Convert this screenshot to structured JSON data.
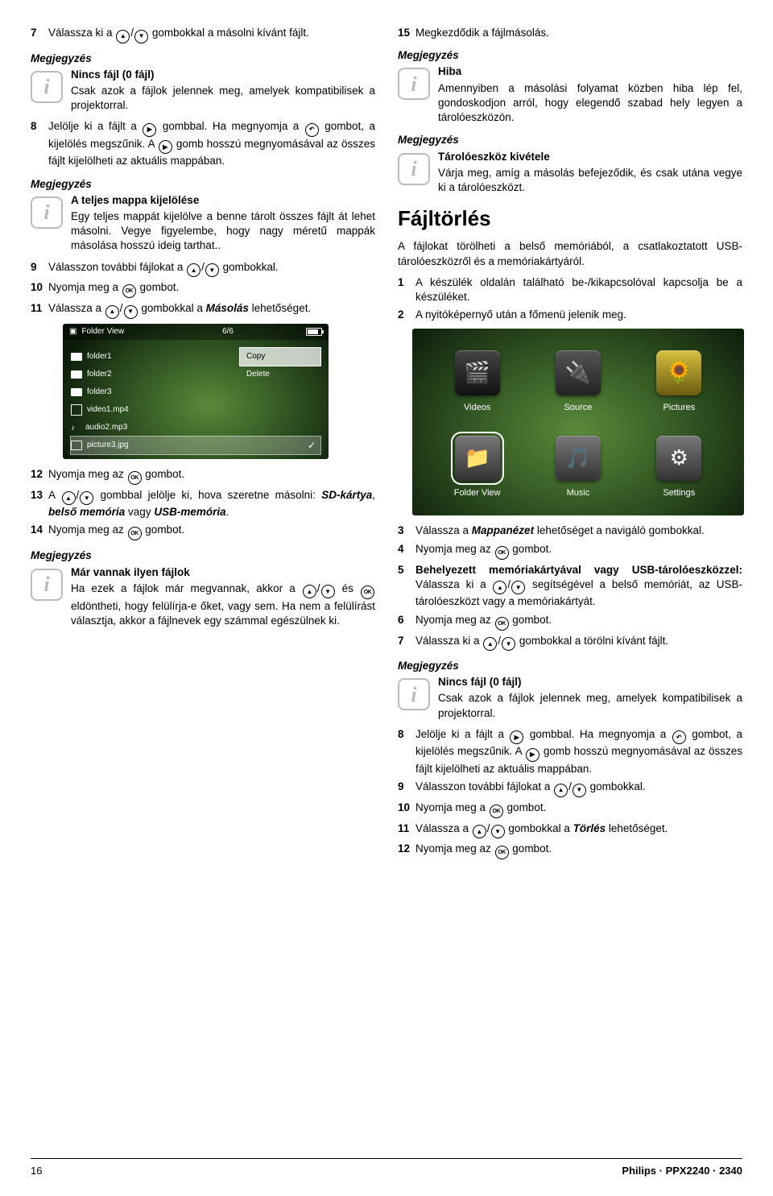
{
  "icons": {
    "up": "▲",
    "down": "▼",
    "play": "▶",
    "back": "↶",
    "ok": "OK"
  },
  "left": {
    "s7": "Válassza ki a ⬆/⬇ gombokkal a másolni kívánt fájlt.",
    "noteTitle": "Megjegyzés",
    "note1_head": "Nincs fájl (0 fájl)",
    "note1_body": "Csak azok a fájlok jelennek meg, amelyek kompatibilisek a projektorral.",
    "s8a": "Jelölje ki a fájlt a ",
    "s8b": " gombbal. Ha megnyomja a ",
    "s8c": " gombot, a kijelölés megszűnik. A ",
    "s8d": " gomb hosszú megnyomásával az összes fájlt kijelölheti az aktuális mappában.",
    "note2_head": "A teljes mappa kijelölése",
    "note2_body": "Egy teljes mappát kijelölve a benne tárolt összes fájlt át lehet másolni. Vegye figyelembe, hogy nagy méretű mappák másolása hosszú ideig tarthat..",
    "s9": "Válasszon további fájlokat a ⬆/⬇ gombokkal.",
    "s10a": "Nyomja meg a ",
    "s10b": " gombot.",
    "s11a": "Válassza a ⬆/⬇ gombokkal a ",
    "s11_em": "Másolás",
    "s11b": " lehetőséget.",
    "s12a": "Nyomja meg az ",
    "s12b": " gombot.",
    "s13a": "A ⬆/⬇ gombbal jelölje ki, hova szeretne másolni: ",
    "s13_em": "SD-kártya",
    "s13_mid": ", ",
    "s13_em2": "belső memória",
    "s13_mid2": " vagy ",
    "s13_em3": "USB-memória",
    "s13_end": ".",
    "s14a": "Nyomja meg az ",
    "s14b": " gombot.",
    "note3_head": "Már vannak ilyen fájlok",
    "note3_body": "Ha ezek a fájlok már megvannak, akkor a ⬆/⬇ és OK eldöntheti, hogy felülírja-e őket, vagy sem. Ha nem a felülírást választja, akkor a fájlnevek egy számmal egészülnek ki."
  },
  "shot1": {
    "title": "Folder View",
    "counter": "6/6",
    "rows": [
      {
        "type": "folder",
        "label": "folder1"
      },
      {
        "type": "folder",
        "label": "folder2"
      },
      {
        "type": "folder",
        "label": "folder3"
      },
      {
        "type": "film",
        "label": "video1.mp4"
      },
      {
        "type": "audio",
        "label": "audio2.mp3"
      },
      {
        "type": "pic",
        "label": "picture3.jpg",
        "selected": true,
        "checked": true
      }
    ],
    "menu": [
      {
        "label": "Copy",
        "selected": true
      },
      {
        "label": "Delete"
      }
    ]
  },
  "right": {
    "s15": "Megkezdődik a fájlmásolás.",
    "noteTitle": "Megjegyzés",
    "note1_head": "Hiba",
    "note1_body": "Amennyiben a másolási folyamat közben hiba lép fel, gondoskodjon arról, hogy elegendő szabad hely legyen a tárolóeszközön.",
    "note2_head": "Tárolóeszköz kivétele",
    "note2_body": "Várja meg, amíg a másolás befejeződik, és csak utána vegye ki a tárolóeszközt.",
    "h2": "Fájltörlés",
    "intro": "A fájlokat törölheti a belső memóriából, a csatlakoztatott USB-tárolóeszközről és a memóriakártyáról.",
    "s1": "A készülék oldalán található be-/kikapcsolóval kapcsolja be a készüléket.",
    "s2": "A nyitóképernyő után a főmenü jelenik meg.",
    "s3a": "Válassza a ",
    "s3_em": "Mappanézet",
    "s3b": " lehetőséget a navigáló gombokkal.",
    "s4a": "Nyomja meg az ",
    "s4b": " gombot.",
    "s5a_b": "Behelyezett memóriakártyával vagy USB-tárolóeszközzel:",
    "s5b": " Válassza ki a ⬆/⬇ segítségével a belső memóriát, az USB-tárolóeszközt vagy a memóriakártyát.",
    "s6a": "Nyomja meg az ",
    "s6b": " gombot.",
    "s7": "Válassza ki a ⬆/⬇ gombokkal a törölni kívánt fájlt.",
    "note3_head": "Nincs fájl (0 fájl)",
    "note3_body": "Csak azok a fájlok jelennek meg, amelyek kompatibilisek a projektorral.",
    "s8a": "Jelölje ki a fájlt a ",
    "s8b": " gombbal. Ha megnyomja a ",
    "s8c": " gombot, a kijelölés megszűnik. A ",
    "s8d": " gomb hosszú megnyomásával az összes fájlt kijelölheti az aktuális mappában.",
    "s9": "Válasszon további fájlokat a ⬆/⬇ gombokkal.",
    "s10a": "Nyomja meg a ",
    "s10b": " gombot.",
    "s11a": "Válassza a ⬆/⬇ gombokkal a ",
    "s11_em": "Törlés",
    "s11b": " lehetőséget.",
    "s12a": "Nyomja meg az ",
    "s12b": " gombot."
  },
  "shot2": {
    "items": [
      {
        "key": "videos",
        "label": "Videos",
        "glyph": "🎬"
      },
      {
        "key": "source",
        "label": "Source",
        "glyph": "🔌"
      },
      {
        "key": "pictures",
        "label": "Pictures",
        "glyph": "🌻"
      },
      {
        "key": "folder",
        "label": "Folder View",
        "glyph": "📁",
        "selected": true
      },
      {
        "key": "music",
        "label": "Music",
        "glyph": "🎵"
      },
      {
        "key": "settings",
        "label": "Settings",
        "glyph": "⚙"
      }
    ]
  },
  "footer": {
    "page": "16",
    "product": "Philips · PPX2240 · 2340"
  }
}
